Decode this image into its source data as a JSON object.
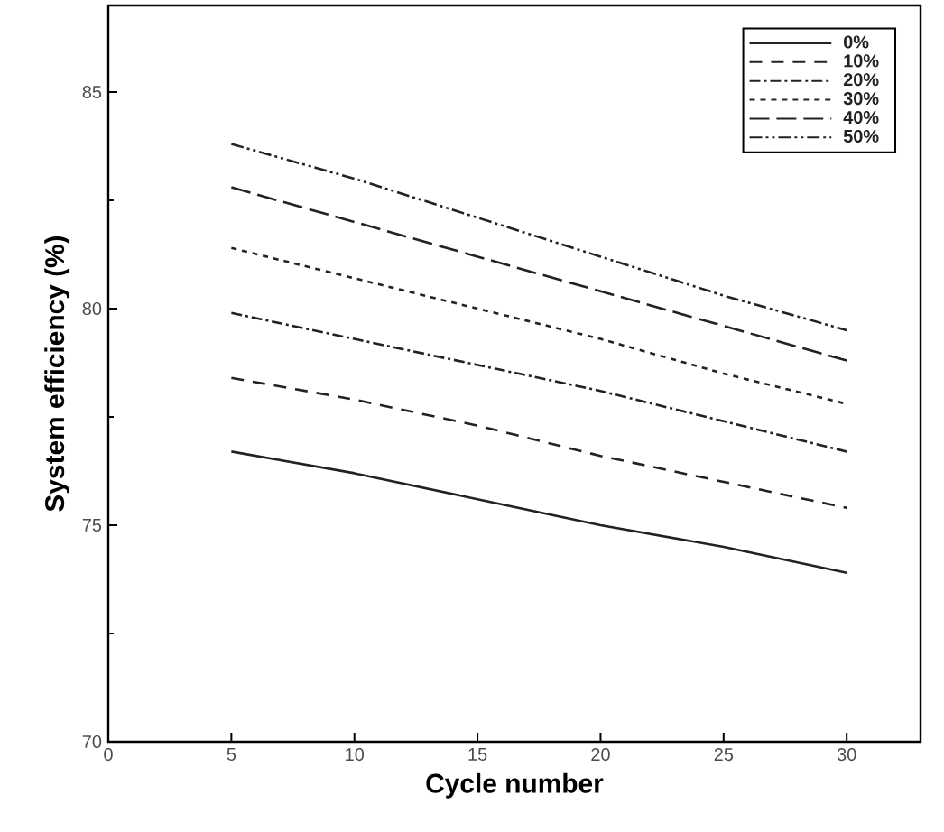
{
  "chart_data": {
    "type": "line",
    "xlabel": "Cycle number",
    "ylabel": "System efficiency (%)",
    "xlim": [
      0,
      33
    ],
    "ylim": [
      70,
      87
    ],
    "xticks": [
      0,
      5,
      10,
      15,
      20,
      25,
      30
    ],
    "yticks": [
      70,
      75,
      80,
      85
    ],
    "grid": false,
    "legend": "top right",
    "marker": "none",
    "x": [
      5,
      10,
      15,
      20,
      25,
      30
    ],
    "series": [
      {
        "name": "0%",
        "color": "#222222",
        "line_style": "solid",
        "values": [
          76.7,
          76.2,
          75.6,
          75.0,
          74.5,
          73.9
        ]
      },
      {
        "name": "10%",
        "color": "#222222",
        "line_style": "dashed",
        "values": [
          78.4,
          77.9,
          77.3,
          76.6,
          76.0,
          75.4
        ]
      },
      {
        "name": "20%",
        "color": "#222222",
        "line_style": "dashdot",
        "values": [
          79.9,
          79.3,
          78.7,
          78.1,
          77.4,
          76.7
        ]
      },
      {
        "name": "30%",
        "color": "#222222",
        "line_style": "dotted",
        "values": [
          81.4,
          80.7,
          80.0,
          79.3,
          78.5,
          77.8
        ]
      },
      {
        "name": "40%",
        "color": "#222222",
        "line_style": "longdashed",
        "values": [
          82.8,
          82.0,
          81.2,
          80.4,
          79.6,
          78.8
        ]
      },
      {
        "name": "50%",
        "color": "#222222",
        "line_style": "dashdotdot",
        "values": [
          83.8,
          83.0,
          82.1,
          81.2,
          80.3,
          79.5
        ]
      }
    ]
  }
}
